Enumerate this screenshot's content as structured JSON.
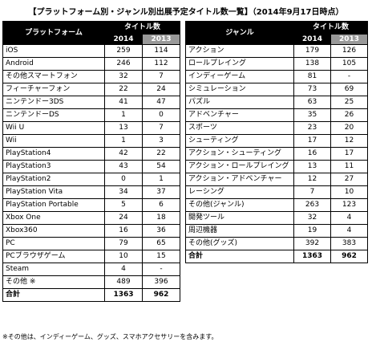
{
  "title": "【プラットフォーム別・ジャンル別出展予定タイトル数一覧】（2014年9月17日時点）",
  "platform_table": {
    "header_label": "プラットフォーム",
    "group_label": "タイトル数",
    "year_1": "2014",
    "year_2": "2013",
    "rows": [
      {
        "name": "iOS",
        "y2014": "259",
        "y2013": "114"
      },
      {
        "name": "Android",
        "y2014": "246",
        "y2013": "112"
      },
      {
        "name": "その他スマートフォン",
        "y2014": "32",
        "y2013": "7"
      },
      {
        "name": "フィーチャーフォン",
        "y2014": "22",
        "y2013": "24"
      },
      {
        "name": "ニンテンドー3DS",
        "y2014": "41",
        "y2013": "47"
      },
      {
        "name": "ニンテンドーDS",
        "y2014": "1",
        "y2013": "0"
      },
      {
        "name": "Wii U",
        "y2014": "13",
        "y2013": "7"
      },
      {
        "name": "Wii",
        "y2014": "1",
        "y2013": "3"
      },
      {
        "name": "PlayStation4",
        "y2014": "42",
        "y2013": "22"
      },
      {
        "name": "PlayStation3",
        "y2014": "43",
        "y2013": "54"
      },
      {
        "name": "PlayStation2",
        "y2014": "0",
        "y2013": "1"
      },
      {
        "name": "PlayStation Vita",
        "y2014": "34",
        "y2013": "37"
      },
      {
        "name": "PlayStation Portable",
        "y2014": "5",
        "y2013": "6"
      },
      {
        "name": "Xbox One",
        "y2014": "24",
        "y2013": "18"
      },
      {
        "name": "Xbox360",
        "y2014": "16",
        "y2013": "36"
      },
      {
        "name": "PC",
        "y2014": "79",
        "y2013": "65"
      },
      {
        "name": "PCブラウザゲーム",
        "y2014": "10",
        "y2013": "15"
      },
      {
        "name": "Steam",
        "y2014": "4",
        "y2013": "-"
      },
      {
        "name": "その他 ※",
        "y2014": "489",
        "y2013": "396"
      }
    ],
    "total": {
      "name": "合計",
      "y2014": "1363",
      "y2013": "962"
    }
  },
  "genre_table": {
    "header_label": "ジャンル",
    "group_label": "タイトル数",
    "year_1": "2014",
    "year_2": "2013",
    "rows": [
      {
        "name": "アクション",
        "y2014": "179",
        "y2013": "126"
      },
      {
        "name": "ロールプレイング",
        "y2014": "138",
        "y2013": "105"
      },
      {
        "name": "インディーゲーム",
        "y2014": "81",
        "y2013": "-"
      },
      {
        "name": "シミュレーション",
        "y2014": "73",
        "y2013": "69"
      },
      {
        "name": "パズル",
        "y2014": "63",
        "y2013": "25"
      },
      {
        "name": "アドベンチャー",
        "y2014": "35",
        "y2013": "26"
      },
      {
        "name": "スポーツ",
        "y2014": "23",
        "y2013": "20"
      },
      {
        "name": "シューティング",
        "y2014": "17",
        "y2013": "12"
      },
      {
        "name": "アクション・シューティング",
        "y2014": "16",
        "y2013": "17"
      },
      {
        "name": "アクション・ロールプレイング",
        "y2014": "13",
        "y2013": "11"
      },
      {
        "name": "アクション・アドベンチャー",
        "y2014": "12",
        "y2013": "27"
      },
      {
        "name": "レーシング",
        "y2014": "7",
        "y2013": "10"
      },
      {
        "name": "その他(ジャンル)",
        "y2014": "263",
        "y2013": "123"
      },
      {
        "name": "開発ツール",
        "y2014": "32",
        "y2013": "4"
      },
      {
        "name": "周辺機器",
        "y2014": "19",
        "y2013": "4"
      },
      {
        "name": "その他(グッズ)",
        "y2014": "392",
        "y2013": "383"
      }
    ],
    "total": {
      "name": "合計",
      "y2014": "1363",
      "y2013": "962"
    }
  },
  "footnote": "※その他は、インディーゲーム、グッズ、スマホアクセサリーを含みます。"
}
